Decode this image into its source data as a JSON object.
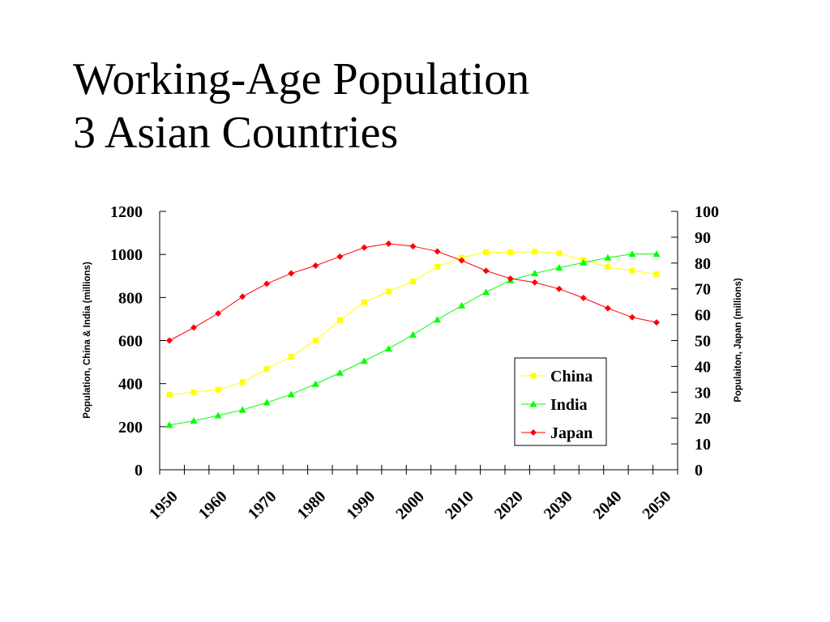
{
  "title": {
    "line1": "Working-Age Population",
    "line2": "3 Asian Countries"
  },
  "chart_data": {
    "type": "line",
    "x": [
      1950,
      1955,
      1960,
      1965,
      1970,
      1975,
      1980,
      1985,
      1990,
      1995,
      2000,
      2005,
      2010,
      2015,
      2020,
      2025,
      2030,
      2035,
      2040,
      2045,
      2050
    ],
    "x_tick_labels": [
      "1950",
      "1960",
      "1970",
      "1980",
      "1990",
      "2000",
      "2010",
      "2020",
      "2030",
      "2040",
      "2050"
    ],
    "xlim": [
      1950,
      2051
    ],
    "y_left": {
      "label": "Population, China & India (millions)",
      "lim": [
        0,
        1200
      ],
      "ticks": [
        0,
        200,
        400,
        600,
        800,
        1000,
        1200
      ]
    },
    "y_right": {
      "label": "Populaiton, Japan (millions)",
      "lim": [
        0,
        100
      ],
      "ticks": [
        0,
        10,
        20,
        30,
        40,
        50,
        60,
        70,
        80,
        90,
        100
      ]
    },
    "series": [
      {
        "name": "China",
        "axis": "left",
        "color": "#ffff00",
        "marker": "square",
        "values": [
          348,
          360,
          372,
          407,
          468,
          525,
          600,
          695,
          778,
          828,
          875,
          943,
          985,
          1010,
          1010,
          1013,
          1005,
          975,
          942,
          925,
          908
        ]
      },
      {
        "name": "India",
        "axis": "left",
        "color": "#00ff00",
        "marker": "triangle",
        "values": [
          208,
          227,
          252,
          278,
          312,
          350,
          398,
          450,
          505,
          562,
          627,
          697,
          762,
          825,
          880,
          912,
          938,
          962,
          985,
          1002,
          1002
        ]
      },
      {
        "name": "Japan",
        "axis": "right",
        "color": "#ff0000",
        "marker": "diamond",
        "values": [
          50,
          55,
          60.5,
          67,
          72,
          76,
          79,
          82.5,
          86,
          87.5,
          86.5,
          84.5,
          81,
          77,
          74,
          72.5,
          70,
          66.5,
          62.5,
          59,
          57
        ]
      }
    ],
    "legend": {
      "placement": "lower-right",
      "entries": [
        "China",
        "India",
        "Japan"
      ]
    },
    "grid": false
  }
}
